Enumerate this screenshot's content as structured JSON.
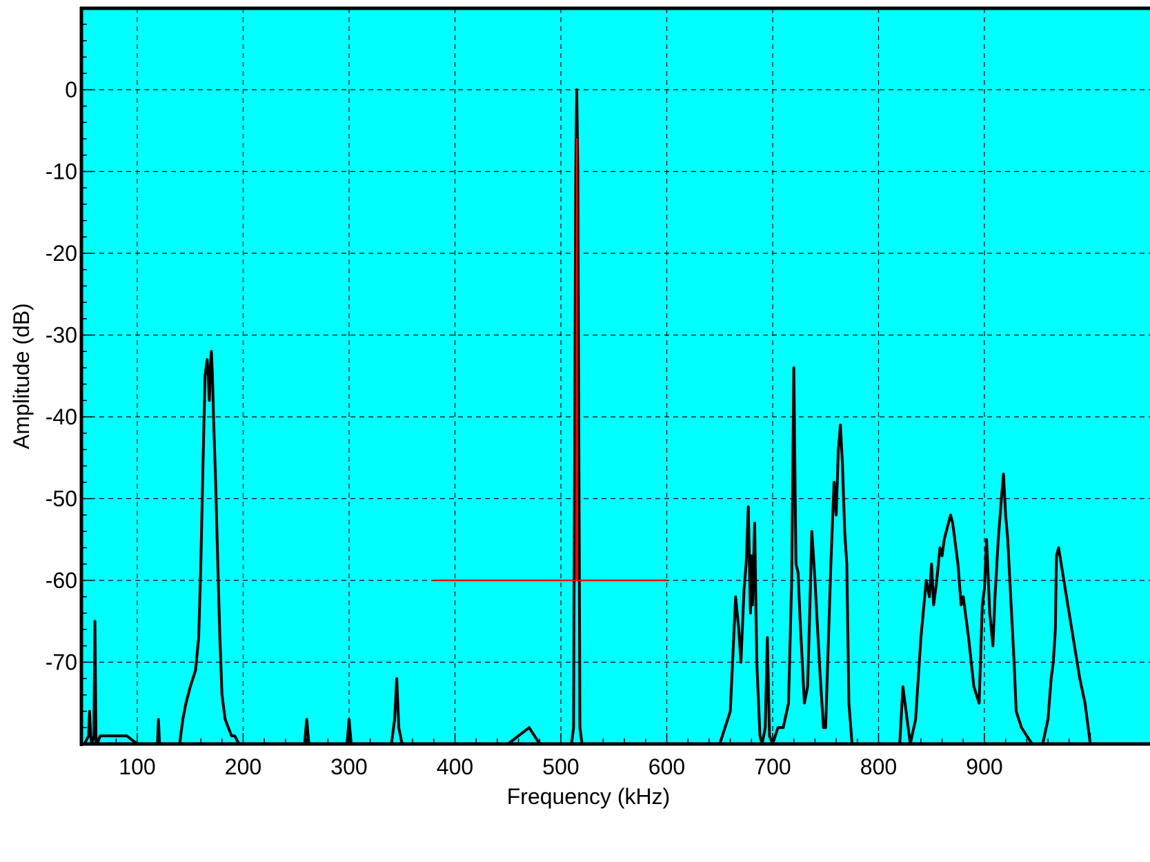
{
  "chart_data": {
    "type": "line",
    "title": "",
    "xlabel": "Frequency (kHz)",
    "ylabel": "Amplitude (dB)",
    "xlim": [
      50,
      1000
    ],
    "ylim": [
      -80,
      10
    ],
    "xticks": [
      100,
      200,
      300,
      400,
      500,
      600,
      700,
      800,
      900
    ],
    "yticks": [
      0,
      -10,
      -20,
      -30,
      -40,
      -50,
      -60,
      -70
    ],
    "grid": true,
    "background_color": "#00ffff",
    "series": [
      {
        "color": "#000000",
        "x": [
          50,
          54,
          55,
          56,
          57,
          59,
          60,
          61,
          62,
          65,
          70,
          80,
          90,
          100,
          110,
          119,
          120,
          121,
          130,
          140,
          143,
          146,
          150,
          155,
          158,
          160,
          162,
          164,
          166,
          167,
          168,
          169,
          170,
          171,
          172,
          174,
          176,
          178,
          180,
          183,
          186,
          189,
          192,
          196,
          200,
          220,
          240,
          258,
          260,
          262,
          280,
          298,
          300,
          302,
          320,
          340,
          343,
          345,
          347,
          350,
          380,
          420,
          450,
          470,
          480,
          500,
          510,
          512,
          514,
          515,
          516,
          518,
          520,
          525,
          530,
          560,
          600,
          640,
          650,
          660,
          665,
          668,
          670,
          673,
          675,
          677,
          679,
          680,
          681,
          683,
          685,
          688,
          690,
          693,
          695,
          697,
          700,
          705,
          710,
          715,
          718,
          720,
          722,
          724,
          726,
          730,
          733,
          735,
          737,
          740,
          742,
          745,
          748,
          750,
          752,
          755,
          758,
          760,
          762,
          764,
          766,
          768,
          770,
          772,
          775,
          778,
          780,
          790,
          800,
          810,
          820,
          823,
          826,
          830,
          835,
          840,
          845,
          848,
          850,
          852,
          855,
          858,
          860,
          862,
          864,
          866,
          868,
          870,
          872,
          875,
          878,
          880,
          885,
          890,
          895,
          898,
          900,
          902,
          905,
          908,
          910,
          913,
          916,
          918,
          920,
          922,
          924,
          926,
          928,
          930,
          935,
          940,
          945,
          950,
          955,
          960,
          963,
          965,
          967,
          968,
          970,
          975,
          980,
          985,
          990,
          995,
          998,
          1000
        ],
        "y": [
          -80,
          -79,
          -76,
          -79,
          -80,
          -79,
          -65,
          -79,
          -80,
          -79,
          -79,
          -79,
          -79,
          -80,
          -80,
          -80,
          -77,
          -80,
          -80,
          -80,
          -77,
          -75,
          -73,
          -71,
          -67,
          -58,
          -46,
          -35,
          -33,
          -35,
          -38,
          -34,
          -32,
          -35,
          -40,
          -48,
          -58,
          -67,
          -74,
          -77,
          -78,
          -79,
          -79,
          -80,
          -80,
          -80,
          -80,
          -80,
          -77,
          -80,
          -80,
          -80,
          -77,
          -80,
          -80,
          -80,
          -77,
          -72,
          -78,
          -80,
          -80,
          -80,
          -80,
          -78,
          -80,
          -80,
          -80,
          -78,
          -10,
          0,
          -10,
          -78,
          -80,
          -80,
          -80,
          -80,
          -80,
          -80,
          -80,
          -76,
          -62,
          -66,
          -70,
          -61,
          -58,
          -51,
          -64,
          -57,
          -63,
          -53,
          -70,
          -79,
          -80,
          -78,
          -67,
          -79,
          -80,
          -78,
          -78,
          -75,
          -60,
          -34,
          -58,
          -59,
          -65,
          -75,
          -73,
          -64,
          -54,
          -60,
          -65,
          -72,
          -78,
          -78,
          -70,
          -58,
          -48,
          -52,
          -44,
          -41,
          -46,
          -54,
          -58,
          -75,
          -80,
          -80,
          -80,
          -80,
          -80,
          -80,
          -80,
          -73,
          -76,
          -80,
          -77,
          -67,
          -60,
          -62,
          -58,
          -63,
          -60,
          -56,
          -57,
          -55,
          -54,
          -53,
          -52,
          -53,
          -55,
          -58,
          -63,
          -62,
          -67,
          -73,
          -75,
          -63,
          -61,
          -55,
          -64,
          -68,
          -62,
          -55,
          -50,
          -47,
          -52,
          -55,
          -60,
          -65,
          -70,
          -76,
          -78,
          -79,
          -80,
          -80,
          -80,
          -77,
          -72,
          -70,
          -66,
          -57,
          -56,
          -60,
          -64,
          -68,
          -72,
          -75,
          -78,
          -80
        ]
      },
      {
        "color": "#ff0000",
        "x": [
          514.5,
          515,
          515.5
        ],
        "y": [
          -60,
          -6,
          -60
        ]
      }
    ],
    "annotations": [
      {
        "type": "hline",
        "color": "#ff0000",
        "y": -60,
        "x_from": 380,
        "x_to": 600
      }
    ]
  }
}
